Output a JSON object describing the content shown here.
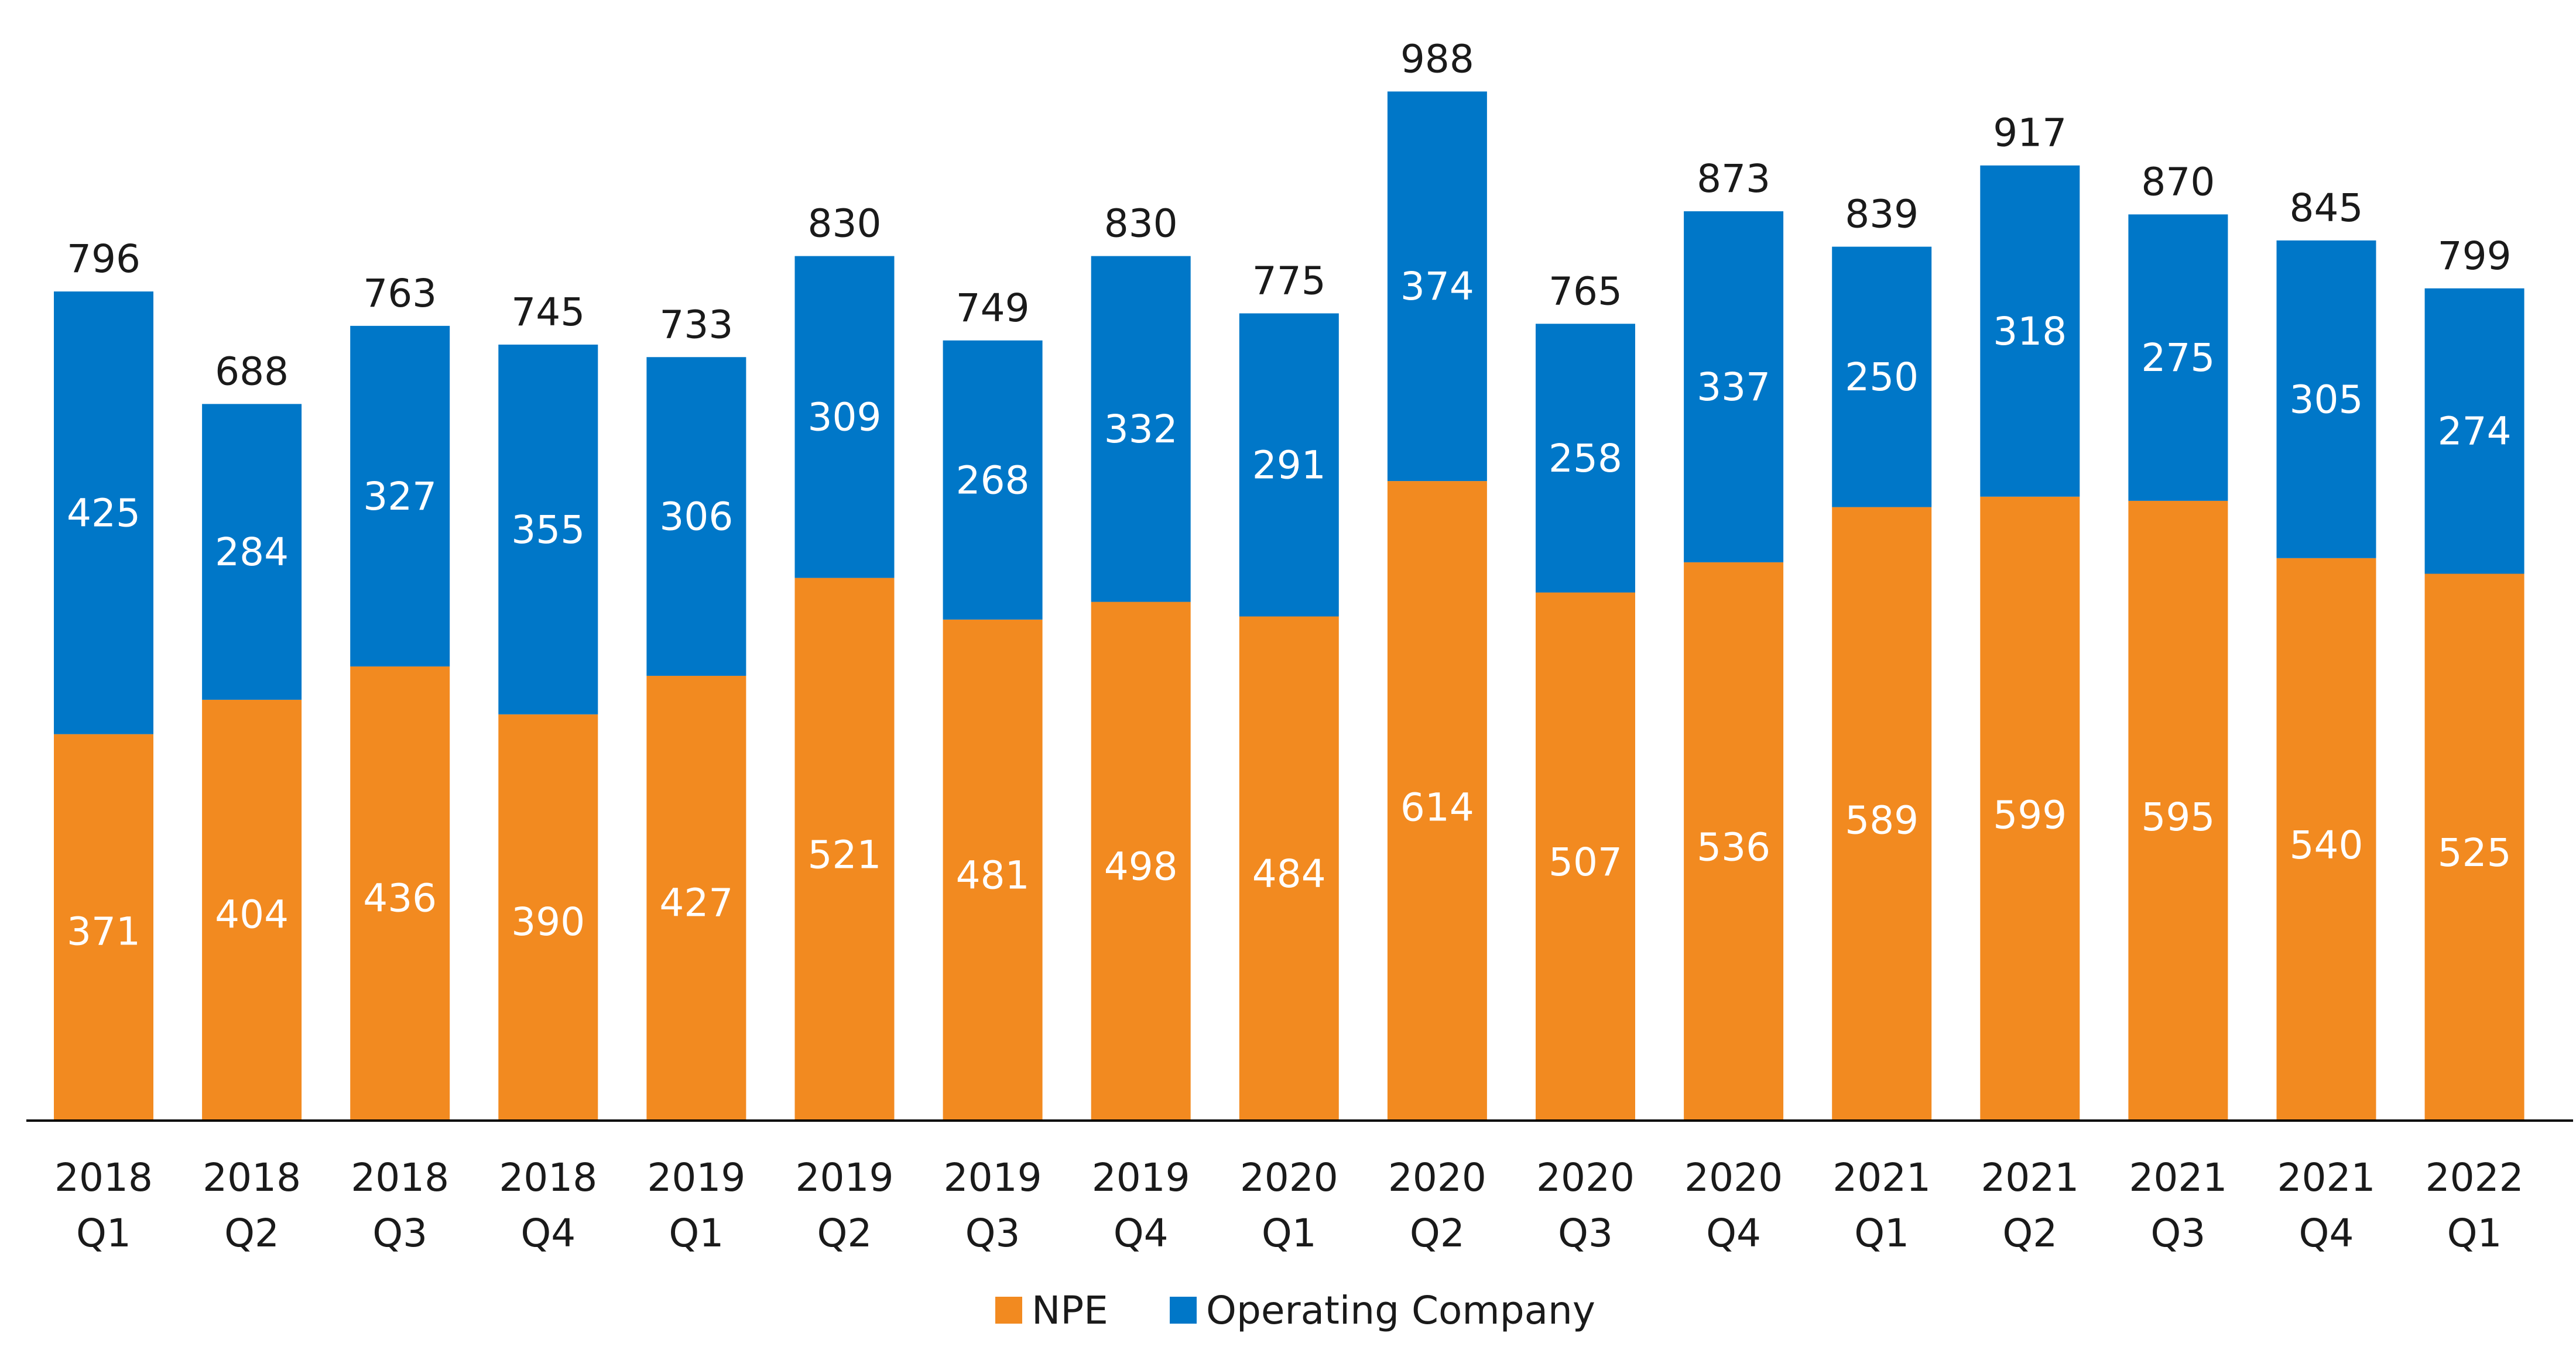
{
  "chart_data": {
    "type": "bar",
    "stacked": true,
    "title": "",
    "xlabel": "",
    "ylabel": "",
    "categories": [
      [
        "2018",
        "Q1"
      ],
      [
        "2018",
        "Q2"
      ],
      [
        "2018",
        "Q3"
      ],
      [
        "2018",
        "Q4"
      ],
      [
        "2019",
        "Q1"
      ],
      [
        "2019",
        "Q2"
      ],
      [
        "2019",
        "Q3"
      ],
      [
        "2019",
        "Q4"
      ],
      [
        "2020",
        "Q1"
      ],
      [
        "2020",
        "Q2"
      ],
      [
        "2020",
        "Q3"
      ],
      [
        "2020",
        "Q4"
      ],
      [
        "2021",
        "Q1"
      ],
      [
        "2021",
        "Q2"
      ],
      [
        "2021",
        "Q3"
      ],
      [
        "2021",
        "Q4"
      ],
      [
        "2022",
        "Q1"
      ]
    ],
    "series": [
      {
        "name": "NPE",
        "color": "#F28A20",
        "values": [
          371,
          404,
          436,
          390,
          427,
          521,
          481,
          498,
          484,
          614,
          507,
          536,
          589,
          599,
          595,
          540,
          525
        ]
      },
      {
        "name": "Operating Company",
        "color": "#0077C8",
        "values": [
          425,
          284,
          327,
          355,
          306,
          309,
          268,
          332,
          291,
          374,
          258,
          337,
          250,
          318,
          275,
          305,
          274
        ]
      }
    ],
    "totals": [
      796,
      688,
      763,
      745,
      733,
      830,
      749,
      830,
      775,
      988,
      765,
      873,
      839,
      917,
      870,
      845,
      799
    ],
    "ylim": [
      0,
      988
    ],
    "y_axis_visible": false,
    "grid": false,
    "legend_position": "bottom-center",
    "data_labels": "inside-segments-and-totals-above"
  },
  "colors": {
    "background": "#FFFFFF",
    "axis": "#000000",
    "text": "#1A1A1A",
    "segment_label": "#FFFFFF"
  }
}
